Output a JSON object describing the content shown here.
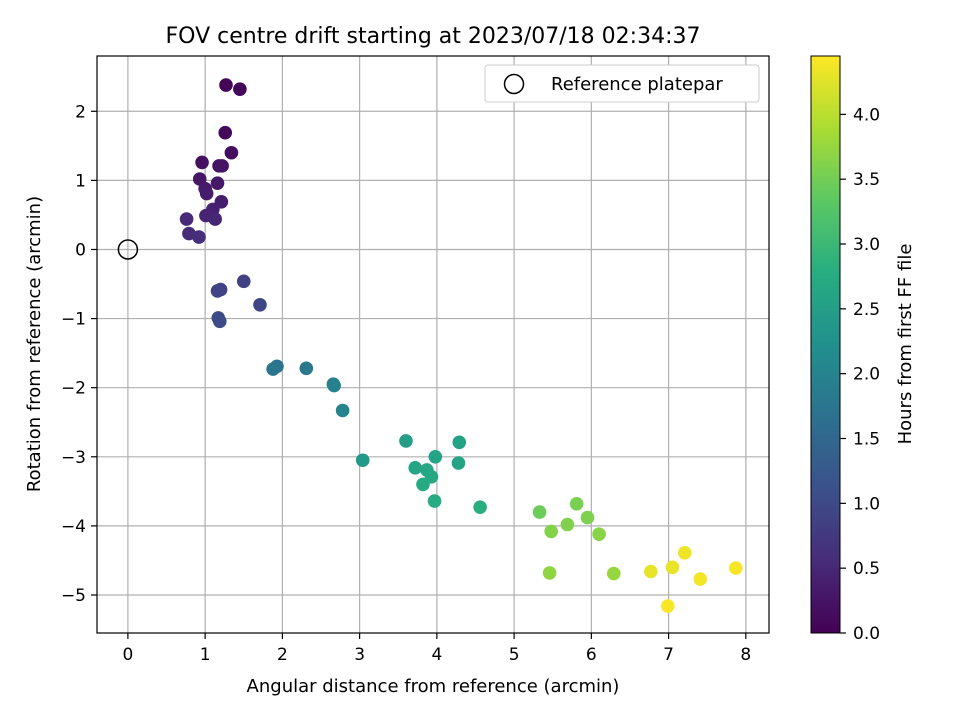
{
  "chart_data": {
    "type": "scatter",
    "title": "FOV centre drift starting at 2023/07/18 02:34:37",
    "xlabel": "Angular distance from reference (arcmin)",
    "ylabel": "Rotation from reference (arcmin)",
    "xlim": [
      -0.4,
      8.3
    ],
    "ylim": [
      -5.55,
      2.8
    ],
    "xticks": [
      0,
      1,
      2,
      3,
      4,
      5,
      6,
      7,
      8
    ],
    "yticks": [
      -5,
      -4,
      -3,
      -2,
      -1,
      0,
      1,
      2
    ],
    "grid": true,
    "legend": {
      "position": "top-right",
      "label": "Reference platepar"
    },
    "reference_point": {
      "x": 0,
      "y": 0
    },
    "colorbar": {
      "label": "Hours from first FF file",
      "range": [
        0,
        4.45
      ],
      "ticks": [
        0.0,
        0.5,
        1.0,
        1.5,
        2.0,
        2.5,
        3.0,
        3.5,
        4.0
      ],
      "tick_labels": [
        "0.0",
        "0.5",
        "1.0",
        "1.5",
        "2.0",
        "2.5",
        "3.0",
        "3.5",
        "4.0"
      ],
      "colormap": "viridis"
    },
    "points": [
      {
        "x": 1.27,
        "y": 2.38,
        "c": 0.05
      },
      {
        "x": 1.45,
        "y": 2.32,
        "c": 0.07
      },
      {
        "x": 1.26,
        "y": 1.69,
        "c": 0.1
      },
      {
        "x": 1.34,
        "y": 1.4,
        "c": 0.15
      },
      {
        "x": 0.96,
        "y": 1.26,
        "c": 0.2
      },
      {
        "x": 1.18,
        "y": 1.21,
        "c": 0.22
      },
      {
        "x": 1.22,
        "y": 1.21,
        "c": 0.24
      },
      {
        "x": 0.93,
        "y": 1.02,
        "c": 0.28
      },
      {
        "x": 1.16,
        "y": 0.96,
        "c": 0.3
      },
      {
        "x": 1.0,
        "y": 0.88,
        "c": 0.33
      },
      {
        "x": 1.02,
        "y": 0.81,
        "c": 0.35
      },
      {
        "x": 1.21,
        "y": 0.69,
        "c": 0.38
      },
      {
        "x": 1.1,
        "y": 0.58,
        "c": 0.42
      },
      {
        "x": 1.01,
        "y": 0.49,
        "c": 0.45
      },
      {
        "x": 1.13,
        "y": 0.44,
        "c": 0.48
      },
      {
        "x": 0.76,
        "y": 0.44,
        "c": 0.52
      },
      {
        "x": 0.79,
        "y": 0.23,
        "c": 0.55
      },
      {
        "x": 0.92,
        "y": 0.18,
        "c": 0.58
      },
      {
        "x": 1.5,
        "y": -0.46,
        "c": 0.85
      },
      {
        "x": 1.2,
        "y": -0.58,
        "c": 0.88
      },
      {
        "x": 1.16,
        "y": -0.6,
        "c": 0.9
      },
      {
        "x": 1.71,
        "y": -0.8,
        "c": 0.95
      },
      {
        "x": 1.17,
        "y": -0.99,
        "c": 1.0
      },
      {
        "x": 1.19,
        "y": -1.04,
        "c": 1.02
      },
      {
        "x": 1.93,
        "y": -1.69,
        "c": 1.7
      },
      {
        "x": 1.88,
        "y": -1.73,
        "c": 1.75
      },
      {
        "x": 2.31,
        "y": -1.72,
        "c": 1.8
      },
      {
        "x": 2.66,
        "y": -1.95,
        "c": 1.9
      },
      {
        "x": 2.67,
        "y": -1.97,
        "c": 1.95
      },
      {
        "x": 2.78,
        "y": -2.33,
        "c": 2.0
      },
      {
        "x": 3.04,
        "y": -3.05,
        "c": 2.4
      },
      {
        "x": 3.6,
        "y": -2.77,
        "c": 2.5
      },
      {
        "x": 4.29,
        "y": -2.79,
        "c": 2.55
      },
      {
        "x": 3.98,
        "y": -3.0,
        "c": 2.58
      },
      {
        "x": 4.28,
        "y": -3.09,
        "c": 2.6
      },
      {
        "x": 3.72,
        "y": -3.16,
        "c": 2.62
      },
      {
        "x": 3.87,
        "y": -3.19,
        "c": 2.65
      },
      {
        "x": 3.93,
        "y": -3.29,
        "c": 2.68
      },
      {
        "x": 3.82,
        "y": -3.4,
        "c": 2.72
      },
      {
        "x": 3.97,
        "y": -3.64,
        "c": 2.75
      },
      {
        "x": 4.56,
        "y": -3.73,
        "c": 2.8
      },
      {
        "x": 5.33,
        "y": -3.8,
        "c": 3.45
      },
      {
        "x": 5.81,
        "y": -3.68,
        "c": 3.55
      },
      {
        "x": 5.95,
        "y": -3.88,
        "c": 3.58
      },
      {
        "x": 5.69,
        "y": -3.98,
        "c": 3.6
      },
      {
        "x": 5.48,
        "y": -4.08,
        "c": 3.62
      },
      {
        "x": 6.1,
        "y": -4.12,
        "c": 3.65
      },
      {
        "x": 5.46,
        "y": -4.68,
        "c": 3.7
      },
      {
        "x": 6.29,
        "y": -4.69,
        "c": 3.75
      },
      {
        "x": 6.77,
        "y": -4.66,
        "c": 4.3
      },
      {
        "x": 7.05,
        "y": -4.6,
        "c": 4.32
      },
      {
        "x": 7.21,
        "y": -4.39,
        "c": 4.35
      },
      {
        "x": 7.41,
        "y": -4.77,
        "c": 4.38
      },
      {
        "x": 7.87,
        "y": -4.61,
        "c": 4.4
      },
      {
        "x": 6.99,
        "y": -5.16,
        "c": 4.42
      }
    ]
  }
}
